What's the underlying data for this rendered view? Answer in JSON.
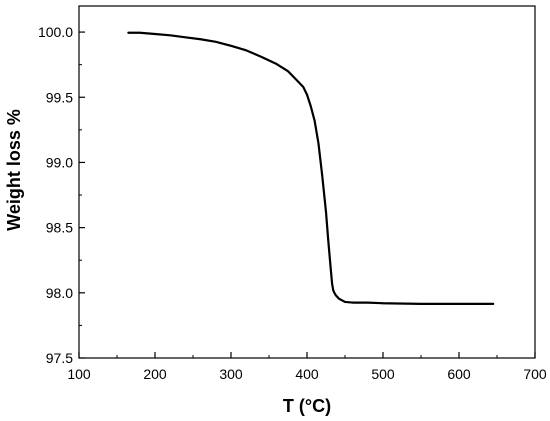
{
  "chart_data": {
    "type": "line",
    "title": "",
    "xlabel": "T (°C)",
    "ylabel": "Weight loss %",
    "xlim": [
      100,
      700
    ],
    "ylim": [
      97.5,
      100.2
    ],
    "xticks": [
      100,
      200,
      300,
      400,
      500,
      600,
      700
    ],
    "yticks": [
      97.5,
      98.0,
      98.5,
      99.0,
      99.5,
      100.0
    ],
    "ytick_labels": [
      "97.5",
      "98.0",
      "98.5",
      "99.0",
      "99.5",
      "100.0"
    ],
    "grid": false,
    "series": [
      {
        "color": "#000000",
        "x": [
          165,
          180,
          200,
          220,
          240,
          260,
          280,
          300,
          320,
          340,
          360,
          375,
          385,
          395,
          400,
          405,
          410,
          415,
          420,
          425,
          428,
          431,
          433,
          434.5,
          436,
          438,
          442,
          450,
          460,
          480,
          500,
          550,
          600,
          645
        ],
        "y": [
          99.995,
          99.995,
          99.985,
          99.975,
          99.96,
          99.945,
          99.925,
          99.895,
          99.86,
          99.81,
          99.755,
          99.7,
          99.64,
          99.58,
          99.52,
          99.43,
          99.32,
          99.15,
          98.9,
          98.62,
          98.4,
          98.2,
          98.07,
          98.02,
          98.0,
          97.98,
          97.955,
          97.93,
          97.925,
          97.925,
          97.92,
          97.915,
          97.915,
          97.915
        ]
      }
    ]
  }
}
